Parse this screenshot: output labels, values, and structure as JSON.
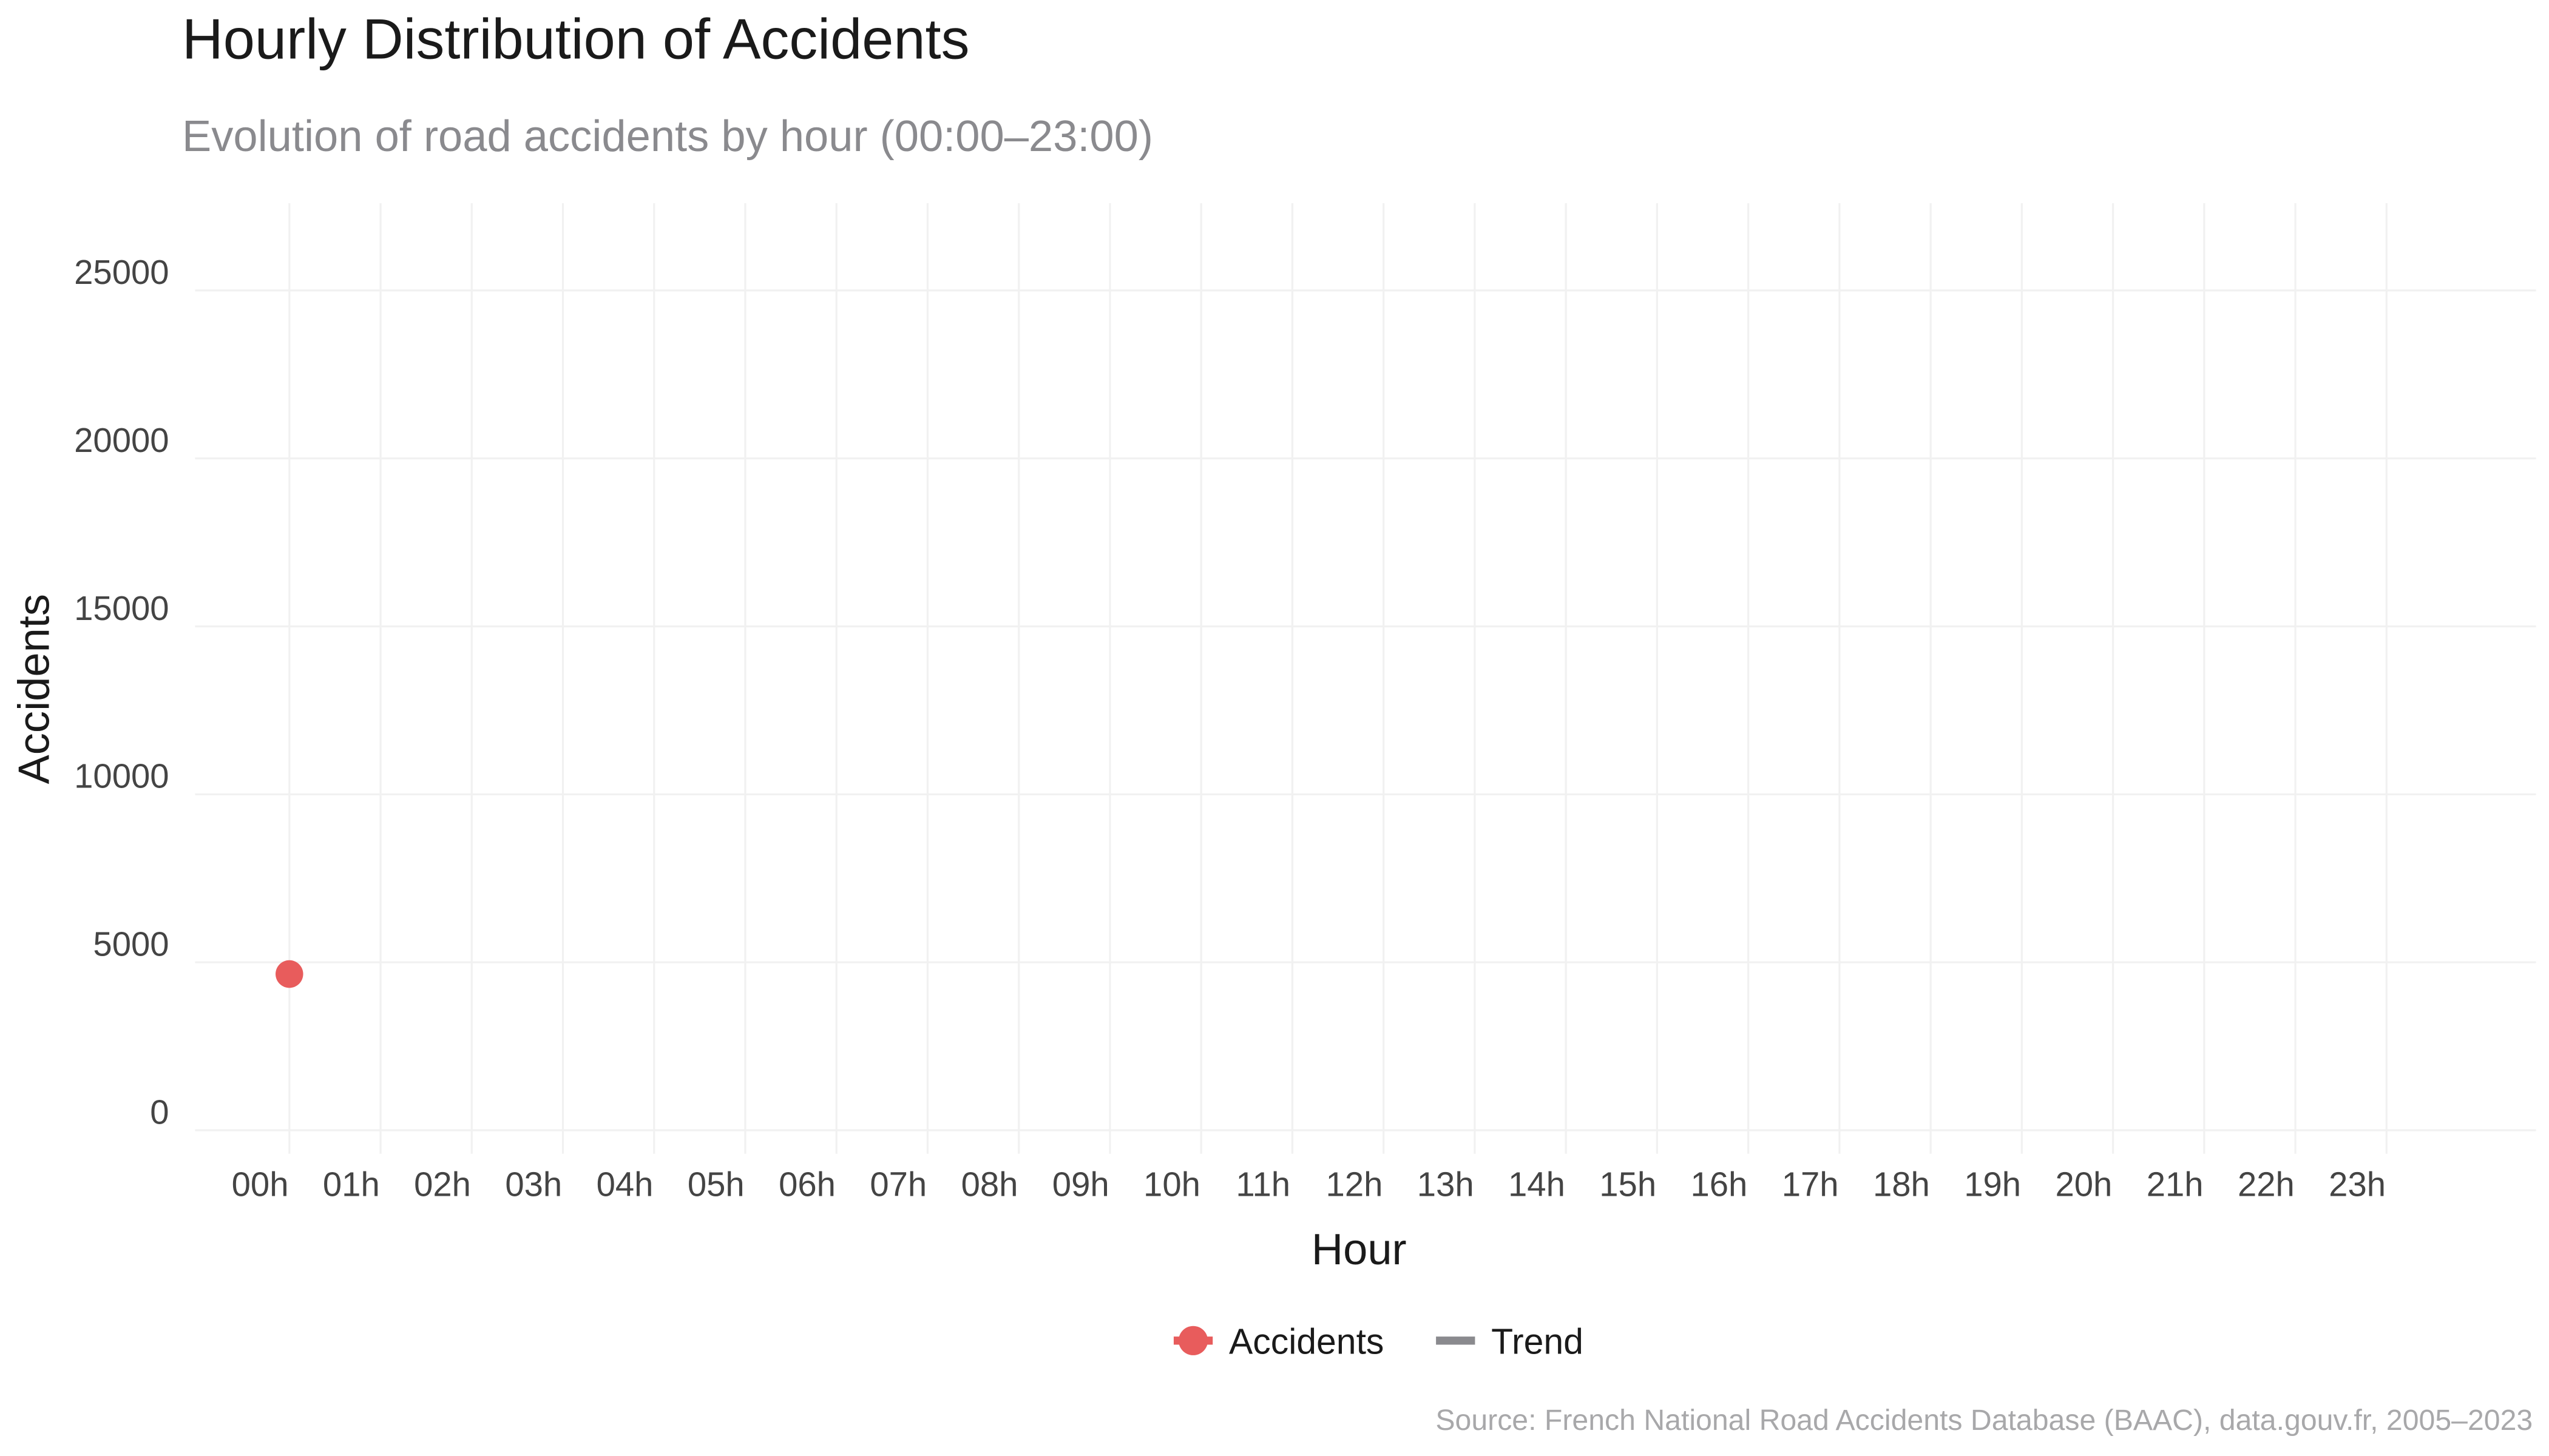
{
  "chart_data": {
    "type": "line",
    "title": "Hourly Distribution of Accidents",
    "subtitle": "Evolution of road accidents by hour (00:00–23:00)",
    "x_label": "Hour",
    "y_label": "Accidents",
    "caption": "Source: French National Road Accidents Database (BAAC), data.gouv.fr, 2005–2023",
    "categories": [
      "00h",
      "01h",
      "02h",
      "03h",
      "04h",
      "05h",
      "06h",
      "07h",
      "08h",
      "09h",
      "10h",
      "11h",
      "12h",
      "13h",
      "14h",
      "15h",
      "16h",
      "17h",
      "18h",
      "19h",
      "20h",
      "21h",
      "22h",
      "23h"
    ],
    "series": [
      {
        "name": "Accidents",
        "color": "#e85c5c",
        "values": [
          4650,
          null,
          null,
          null,
          null,
          null,
          null,
          null,
          null,
          null,
          null,
          null,
          null,
          null,
          null,
          null,
          null,
          null,
          null,
          null,
          null,
          null,
          null,
          null
        ]
      },
      {
        "name": "Trend",
        "color": "#8a8a8e",
        "values": [
          null,
          null,
          null,
          null,
          null,
          null,
          null,
          null,
          null,
          null,
          null,
          null,
          null,
          null,
          null,
          null,
          null,
          null,
          null,
          null,
          null,
          null,
          null,
          null
        ]
      }
    ],
    "ylim": [
      -700,
      27600
    ],
    "yticks": [
      0,
      5000,
      10000,
      15000,
      20000,
      25000
    ],
    "grid": true,
    "legend": "bottom"
  }
}
